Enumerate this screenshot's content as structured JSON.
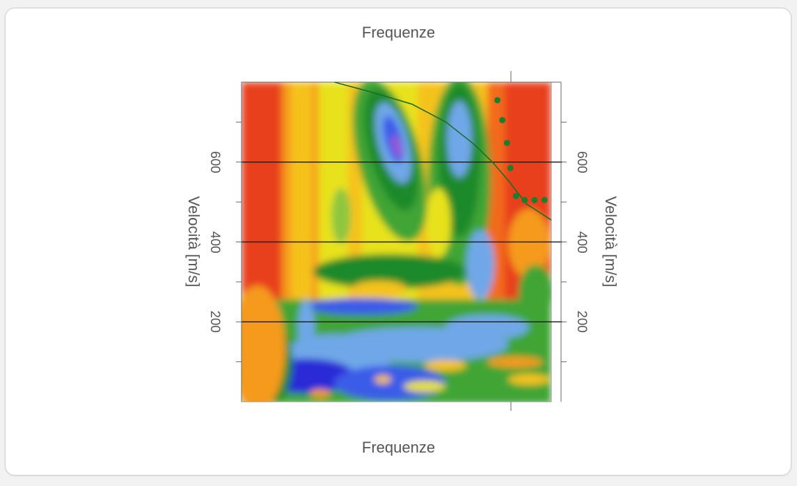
{
  "chart_data": {
    "type": "heatmap",
    "title_top": "Frequenze",
    "title_bottom": "Frequenze",
    "ylabel_left": "Velocità [m/s]",
    "ylabel_right": "Velocità [m/s]",
    "ylim": [
      0,
      800
    ],
    "y_ticks": [
      200,
      400,
      600
    ],
    "y_minor_ticks": [
      100,
      300,
      500,
      700
    ],
    "hlines": [
      200,
      400,
      600
    ],
    "colormap": [
      "#2a2ad6",
      "#3b5be8",
      "#6fa7e8",
      "#1f8a2a",
      "#3fa535",
      "#8ec63f",
      "#e8e21a",
      "#f5c21c",
      "#f59a1c",
      "#f26a1c",
      "#e8401a"
    ],
    "picked_points": [
      {
        "x": 0.826,
        "y": 755
      },
      {
        "x": 0.842,
        "y": 705
      },
      {
        "x": 0.857,
        "y": 648
      },
      {
        "x": 0.868,
        "y": 585
      },
      {
        "x": 0.886,
        "y": 515
      },
      {
        "x": 0.914,
        "y": 505
      },
      {
        "x": 0.946,
        "y": 505
      },
      {
        "x": 0.978,
        "y": 505
      }
    ],
    "dispersion_curve": [
      {
        "x": 0.3,
        "y": 800
      },
      {
        "x": 0.42,
        "y": 775
      },
      {
        "x": 0.55,
        "y": 745
      },
      {
        "x": 0.66,
        "y": 700
      },
      {
        "x": 0.75,
        "y": 645
      },
      {
        "x": 0.81,
        "y": 600
      },
      {
        "x": 0.86,
        "y": 555
      },
      {
        "x": 0.92,
        "y": 495
      },
      {
        "x": 1.0,
        "y": 455
      }
    ],
    "colors": {
      "background": "#e8401a",
      "curve": "#1e6b28",
      "points": "#1e7d2c",
      "gridline": "#222222"
    }
  }
}
